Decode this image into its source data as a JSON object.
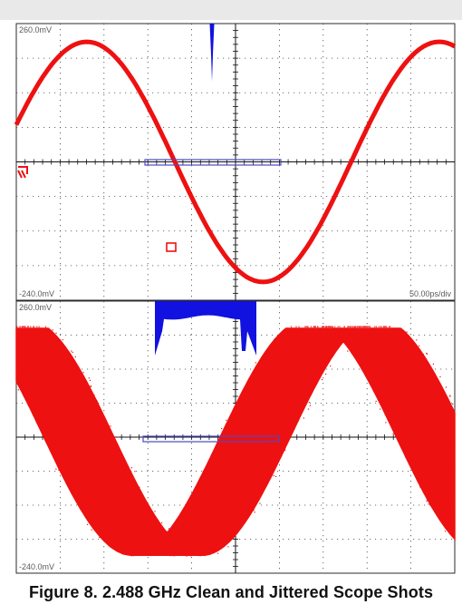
{
  "figure": {
    "caption": "Figure 8. 2.488 GHz Clean and Jittered Scope Shots"
  },
  "colors": {
    "trace": "#ee1111",
    "histogram": "#1111e0",
    "grid_major": "#111111",
    "grid_minor": "#444444",
    "window_box": "#4a4ac8",
    "background": "#ffffff"
  },
  "chart_data": [
    {
      "type": "line",
      "panel": "clean",
      "y_top_label": "260.0mV",
      "y_bottom_label": "-240.0mV",
      "timebase_label": "50.00ps/div",
      "ylim": [
        -240,
        260
      ],
      "grid_divisions": {
        "x": 10,
        "y": 8
      },
      "grid": true,
      "series": [
        {
          "signal": "sine",
          "frequency_GHz": 2.488,
          "amplitude_mV": 217,
          "offset_mV": 10,
          "phase_at_left_edge_deg": 18,
          "t_start_ps": 0,
          "t_end_ps": 500,
          "jitter_ps": 0
        }
      ],
      "jitter_histogram": {
        "position": "top",
        "shape": "narrow spike"
      }
    },
    {
      "type": "area",
      "panel": "jittered",
      "y_top_label": "260.0mV",
      "y_bottom_label": "-240.0mV",
      "ylim": [
        -240,
        260
      ],
      "grid_divisions": {
        "x": 10,
        "y": 8
      },
      "grid": true,
      "series": [
        {
          "signal": "sine",
          "frequency_GHz": 2.488,
          "amplitude_mV": 217,
          "offset_mV": 10,
          "phase_at_left_edge_deg": 116,
          "t_start_ps": 0,
          "t_end_ps": 500,
          "jitter_pp_ps": 80,
          "top_clip_mV": 210
        }
      ],
      "jitter_histogram": {
        "position": "top",
        "shape": "wide band"
      }
    }
  ]
}
